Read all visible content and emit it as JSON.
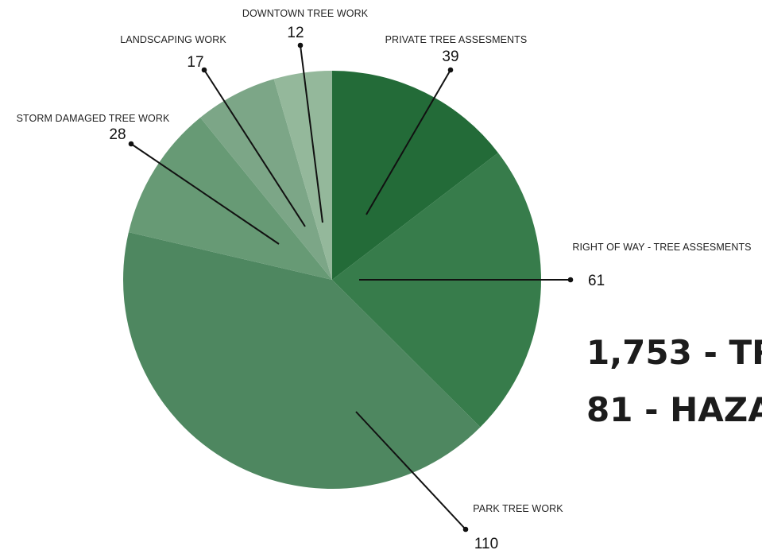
{
  "chart_data": {
    "type": "pie",
    "slices": [
      {
        "label": "PRIVATE TREE ASSESMENTS",
        "value": 39,
        "color": "#236b38"
      },
      {
        "label": "RIGHT OF WAY - TREE ASSESMENTS",
        "value": 61,
        "color": "#377c4b"
      },
      {
        "label": "PARK TREE WORK",
        "value": 110,
        "color": "#4e8760"
      },
      {
        "label": "STORM DAMAGED TREE WORK",
        "value": 28,
        "color": "#679a75"
      },
      {
        "label": "LANDSCAPING WORK",
        "value": 17,
        "color": "#7ca687"
      },
      {
        "label": "DOWNTOWN TREE WORK",
        "value": 12,
        "color": "#94b89b"
      }
    ],
    "value_labels": [
      "39",
      "61",
      "110",
      "28",
      "17",
      "12"
    ]
  },
  "stats": [
    {
      "text": "1,753 - TR"
    },
    {
      "text": "81 - HAZA"
    }
  ]
}
